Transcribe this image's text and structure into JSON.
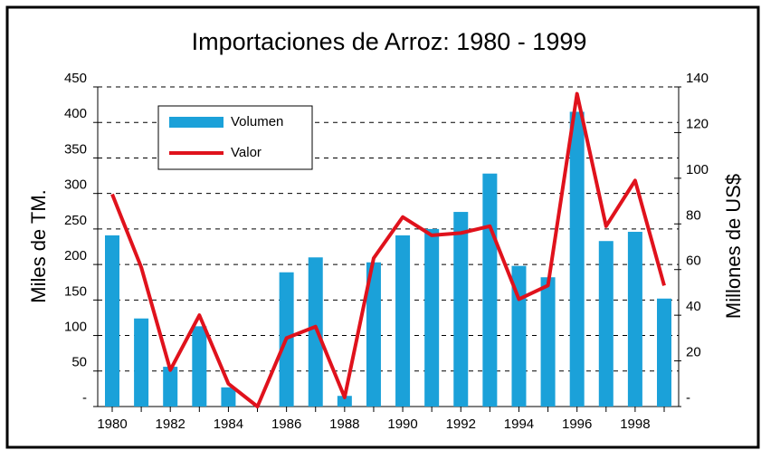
{
  "chart_data": {
    "type": "bar-line",
    "title": "Importaciones de Arroz: 1980 - 1999",
    "y_label": "Miles de TM.",
    "y2_label": "Millones de US$",
    "categories": [
      "1980",
      null,
      "1982",
      null,
      "1984",
      null,
      "1986",
      null,
      "1988",
      null,
      "1990",
      null,
      "1992",
      null,
      "1994",
      null,
      "1996",
      null,
      "1998",
      null
    ],
    "series": [
      {
        "name": "Volumen",
        "type": "bar",
        "color": "#1ba1d9",
        "values": [
          241,
          124,
          56,
          113,
          27,
          null,
          189,
          210,
          15,
          203,
          241,
          250,
          274,
          328,
          198,
          182,
          415,
          233,
          246,
          152
        ]
      },
      {
        "name": "Valor",
        "type": "line",
        "axis": "y2",
        "color": "#e0121c",
        "values": [
          93,
          61,
          16,
          40,
          10,
          0,
          30,
          35,
          4,
          65,
          83,
          75,
          76,
          79,
          47,
          53,
          137,
          79,
          99,
          53
        ]
      }
    ],
    "ylim": [
      0,
      450
    ],
    "yticks": [
      {
        "value": 0,
        "label": "-"
      },
      50,
      100,
      150,
      200,
      250,
      300,
      350,
      400,
      450
    ],
    "y2lim": [
      0,
      140
    ],
    "y2ticks": [
      {
        "value": 0,
        "label": "-"
      },
      20,
      40,
      60,
      80,
      100,
      120,
      140
    ],
    "grid": true,
    "legend": "upper left"
  }
}
